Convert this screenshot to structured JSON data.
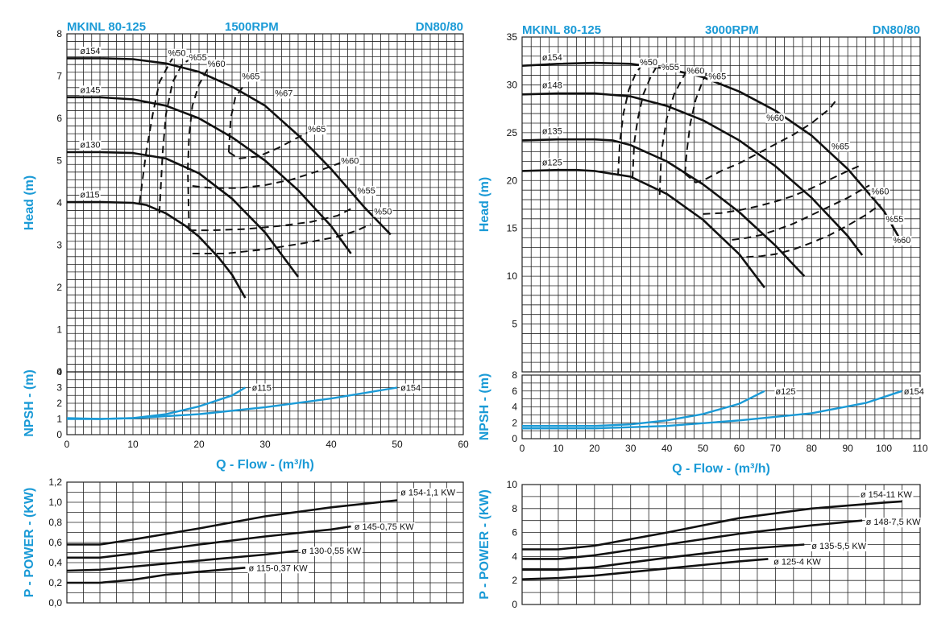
{
  "colors": {
    "accent": "#1a9ad6",
    "grid": "#222222",
    "curve": "#111111"
  },
  "chart_data": [
    {
      "id": "head_1500",
      "type": "line",
      "header": {
        "left": "MKINL 80-125",
        "center": "1500RPM",
        "right": "DN80/80"
      },
      "ylabel": "Head (m)",
      "xlim": [
        0,
        60
      ],
      "ylim": [
        0,
        8
      ],
      "yticks": [
        "0",
        "1",
        "2",
        "3",
        "4",
        "5",
        "6",
        "7",
        "8"
      ],
      "series": [
        {
          "name": "ø154",
          "x": [
            0,
            5,
            10,
            15,
            20,
            25,
            30,
            35,
            40,
            45,
            49
          ],
          "y": [
            7.42,
            7.42,
            7.4,
            7.3,
            7.1,
            6.75,
            6.3,
            5.6,
            4.8,
            3.9,
            3.25
          ]
        },
        {
          "name": "ø145",
          "x": [
            0,
            5,
            10,
            15,
            20,
            25,
            30,
            35,
            40,
            43
          ],
          "y": [
            6.5,
            6.5,
            6.45,
            6.3,
            6.0,
            5.55,
            5.0,
            4.3,
            3.45,
            2.8
          ]
        },
        {
          "name": "ø130",
          "x": [
            0,
            5,
            10,
            15,
            20,
            25,
            30,
            35
          ],
          "y": [
            5.2,
            5.2,
            5.18,
            5.05,
            4.7,
            4.1,
            3.3,
            2.25
          ]
        },
        {
          "name": "ø115",
          "x": [
            0,
            5,
            10,
            12,
            15,
            18,
            20,
            23,
            25,
            27
          ],
          "y": [
            4.02,
            4.02,
            4.0,
            3.95,
            3.75,
            3.45,
            3.2,
            2.7,
            2.3,
            1.75
          ]
        }
      ],
      "efficiency": [
        {
          "name": "%50",
          "label": "%50",
          "x": [
            11,
            12,
            13,
            14,
            15.5,
            16
          ],
          "y": [
            4.0,
            5.2,
            6.1,
            6.85,
            7.3,
            7.42
          ]
        },
        {
          "name": "%55",
          "label": "%55",
          "x": [
            14,
            14.5,
            15,
            16,
            17.5,
            18.5
          ],
          "y": [
            3.75,
            5.2,
            6.1,
            6.85,
            7.3,
            7.38
          ]
        },
        {
          "name": "%60",
          "label": "%60",
          "x": [
            18.5,
            18.3,
            18.5,
            19,
            20,
            21.5
          ],
          "y": [
            3.35,
            4.8,
            5.6,
            6.3,
            6.8,
            7.22
          ]
        },
        {
          "name": "%65",
          "label": "%65",
          "x": [
            24.5,
            24.8,
            25.5,
            27
          ],
          "y": [
            5.2,
            6.0,
            6.5,
            6.82
          ]
        },
        {
          "name": "%67",
          "label": "%67",
          "x": [],
          "y": []
        },
        {
          "name": "%65",
          "label": "%65",
          "x": [
            24.5,
            26,
            29,
            32,
            35,
            37.5
          ],
          "y": [
            5.2,
            5.05,
            5.1,
            5.3,
            5.55,
            5.75
          ]
        },
        {
          "name": "%60",
          "label": "%60",
          "x": [
            19,
            22,
            26,
            30,
            34,
            38,
            41.5
          ],
          "y": [
            4.4,
            4.35,
            4.35,
            4.42,
            4.55,
            4.75,
            4.95
          ]
        },
        {
          "name": "%55",
          "label": "%55",
          "x": [
            18.5,
            22,
            27,
            32,
            37,
            41,
            43.5
          ],
          "y": [
            3.35,
            3.35,
            3.38,
            3.45,
            3.55,
            3.7,
            3.9
          ]
        },
        {
          "name": "%50",
          "label": "%50",
          "x": [
            19,
            24,
            30,
            36,
            41,
            44,
            46
          ],
          "y": [
            2.8,
            2.8,
            2.9,
            3.05,
            3.2,
            3.35,
            3.5
          ]
        }
      ],
      "labels": [
        {
          "text": "ø154",
          "x": 2,
          "y": 7.6
        },
        {
          "text": "ø145",
          "x": 2,
          "y": 6.68
        },
        {
          "text": "ø130",
          "x": 2,
          "y": 5.38
        },
        {
          "text": "ø115",
          "x": 2,
          "y": 4.2
        },
        {
          "text": "%50",
          "x": 15.3,
          "y": 7.55
        },
        {
          "text": "%55",
          "x": 18.5,
          "y": 7.45
        },
        {
          "text": "%60",
          "x": 21.3,
          "y": 7.3
        },
        {
          "text": "%65",
          "x": 26.5,
          "y": 7.0
        },
        {
          "text": "%67",
          "x": 31.5,
          "y": 6.6
        },
        {
          "text": "%65",
          "x": 36.5,
          "y": 5.75
        },
        {
          "text": "%60",
          "x": 41.5,
          "y": 5.0
        },
        {
          "text": "%55",
          "x": 44,
          "y": 4.3
        },
        {
          "text": "%50",
          "x": 46.5,
          "y": 3.8
        }
      ]
    },
    {
      "id": "npsh_1500",
      "type": "line",
      "ylabel": "NPSH - (m)",
      "xlabel": "Q - Flow - (m³/h)",
      "xlim": [
        0,
        60
      ],
      "ylim": [
        0,
        4
      ],
      "xticks": [
        "0",
        "10",
        "20",
        "30",
        "40",
        "50",
        "60"
      ],
      "yticks": [
        "0",
        "1",
        "2",
        "3",
        "4"
      ],
      "series": [
        {
          "name": "ø115",
          "x": [
            0,
            5,
            10,
            15,
            20,
            25,
            27
          ],
          "y": [
            1.05,
            1.0,
            1.05,
            1.3,
            1.8,
            2.5,
            3.0
          ]
        },
        {
          "name": "ø154",
          "x": [
            0,
            5,
            10,
            20,
            30,
            40,
            50
          ],
          "y": [
            1.0,
            1.0,
            1.05,
            1.3,
            1.75,
            2.3,
            3.0
          ]
        }
      ],
      "labels": [
        {
          "text": "ø115",
          "x": 28,
          "y": 3.0
        },
        {
          "text": "ø154",
          "x": 50.5,
          "y": 3.0
        }
      ]
    },
    {
      "id": "power_1500",
      "type": "line",
      "ylabel": "P - POWER - (KW)",
      "xlim": [
        0,
        60
      ],
      "ylim": [
        0,
        1.2
      ],
      "yticks": [
        "0,0",
        "0,2",
        "0,4",
        "0,6",
        "0,8",
        "1,0",
        "1,2"
      ],
      "series": [
        {
          "name": "ø 154-1,1 KW",
          "x": [
            0,
            5,
            10,
            20,
            30,
            40,
            50
          ],
          "y": [
            0.58,
            0.58,
            0.63,
            0.74,
            0.86,
            0.95,
            1.02
          ]
        },
        {
          "name": "ø 145-0,75 KW",
          "x": [
            0,
            5,
            10,
            20,
            30,
            40,
            43
          ],
          "y": [
            0.45,
            0.45,
            0.49,
            0.58,
            0.66,
            0.73,
            0.76
          ]
        },
        {
          "name": "ø 130-0,55 KW",
          "x": [
            0,
            5,
            10,
            20,
            30,
            35
          ],
          "y": [
            0.32,
            0.33,
            0.36,
            0.42,
            0.48,
            0.52
          ]
        },
        {
          "name": "ø 115-0,37 KW",
          "x": [
            0,
            5,
            10,
            15,
            20,
            27
          ],
          "y": [
            0.2,
            0.2,
            0.23,
            0.28,
            0.31,
            0.35
          ]
        }
      ],
      "labels": [
        {
          "text": "ø 154-1,1 KW",
          "x": 50.5,
          "y": 1.1
        },
        {
          "text": "ø 145-0,75 KW",
          "x": 43.5,
          "y": 0.76
        },
        {
          "text": "ø 130-0,55 KW",
          "x": 35.5,
          "y": 0.52
        },
        {
          "text": "ø 115-0,37 KW",
          "x": 27.5,
          "y": 0.35
        }
      ]
    },
    {
      "id": "head_3000",
      "type": "line",
      "header": {
        "left": "MKINL 80-125",
        "center": "3000RPM",
        "right": "DN80/80"
      },
      "ylabel": "Head (m)",
      "xlim": [
        0,
        110
      ],
      "ylim": [
        0,
        35
      ],
      "yticks": [
        "",
        "5",
        "10",
        "15",
        "20",
        "25",
        "30",
        "35"
      ],
      "series": [
        {
          "name": "ø154",
          "x": [
            0,
            10,
            20,
            30,
            40,
            50,
            60,
            70,
            80,
            90,
            100,
            105
          ],
          "y": [
            32.0,
            32.2,
            32.3,
            32.2,
            31.7,
            30.8,
            29.3,
            27.3,
            24.7,
            21.2,
            16.8,
            13.5
          ]
        },
        {
          "name": "ø148",
          "x": [
            0,
            10,
            20,
            30,
            40,
            50,
            60,
            70,
            80,
            90,
            94
          ],
          "y": [
            29.0,
            29.1,
            29.1,
            28.8,
            27.8,
            26.3,
            24.2,
            21.5,
            18.2,
            14.2,
            12.2
          ]
        },
        {
          "name": "ø135",
          "x": [
            0,
            10,
            20,
            25,
            30,
            40,
            50,
            60,
            70,
            78
          ],
          "y": [
            24.2,
            24.3,
            24.3,
            24.2,
            23.7,
            22.0,
            19.6,
            16.7,
            13.2,
            10.0
          ]
        },
        {
          "name": "ø125",
          "x": [
            0,
            10,
            15,
            20,
            30,
            40,
            50,
            60,
            67
          ],
          "y": [
            21.0,
            21.1,
            21.1,
            21.0,
            20.4,
            18.6,
            15.9,
            12.3,
            8.8
          ]
        }
      ],
      "efficiency": [
        {
          "name": "%50",
          "label": "%50",
          "x": [
            26.5,
            27,
            28,
            29.5,
            31.5,
            33
          ],
          "y": [
            20.5,
            24,
            27,
            29.5,
            31.3,
            32
          ]
        },
        {
          "name": "%55",
          "label": "%55",
          "x": [
            30.5,
            31,
            32,
            33.5,
            35.5,
            37
          ],
          "y": [
            20.2,
            24,
            26.5,
            29,
            30.8,
            31.8
          ]
        },
        {
          "name": "%60",
          "label": "%60",
          "x": [
            38,
            38.5,
            40,
            42,
            44.5,
            46
          ],
          "y": [
            18.5,
            23,
            26.5,
            29,
            30.8,
            31.8
          ]
        },
        {
          "name": "%65",
          "label": "%65",
          "x": [
            45,
            45.5,
            46.5,
            48,
            50,
            51
          ],
          "y": [
            20.7,
            23,
            26,
            28.5,
            30.5,
            31.3
          ]
        },
        {
          "name": "%65",
          "label": "%65",
          "x": [
            45,
            48,
            51,
            55,
            60,
            65,
            70,
            75,
            80,
            85,
            87
          ],
          "y": [
            20.7,
            19.8,
            20.2,
            21.0,
            21.8,
            22.8,
            23.8,
            24.8,
            26.0,
            27.5,
            28.5
          ]
        },
        {
          "name": "%60",
          "label": "%60",
          "x": [
            50,
            55,
            60,
            65,
            70,
            75,
            80,
            85,
            90,
            93
          ],
          "y": [
            16.5,
            16.6,
            16.9,
            17.3,
            17.8,
            18.4,
            19.2,
            20.1,
            21.0,
            21.5
          ]
        },
        {
          "name": "%55",
          "label": "%55",
          "x": [
            58,
            62,
            66,
            70,
            75,
            80,
            85,
            90,
            96
          ],
          "y": [
            13.8,
            14.0,
            14.3,
            14.8,
            15.5,
            16.4,
            17.3,
            18.2,
            19.5
          ]
        },
        {
          "name": "%60",
          "label": "%60",
          "x": [
            62,
            66,
            70,
            75,
            80,
            85,
            90,
            95,
            99
          ],
          "y": [
            12.0,
            12.1,
            12.3,
            12.8,
            13.5,
            14.3,
            15.3,
            16.4,
            17.5
          ]
        }
      ],
      "labels": [
        {
          "text": "ø154",
          "x": 5.5,
          "y": 32.9
        },
        {
          "text": "ø148",
          "x": 5.5,
          "y": 30.0
        },
        {
          "text": "ø135",
          "x": 5.5,
          "y": 25.2
        },
        {
          "text": "ø125",
          "x": 5.5,
          "y": 21.9
        },
        {
          "text": "%50",
          "x": 32.5,
          "y": 32.4
        },
        {
          "text": "%55",
          "x": 38.5,
          "y": 31.9
        },
        {
          "text": "%60",
          "x": 45.5,
          "y": 31.5
        },
        {
          "text": "%65",
          "x": 51.5,
          "y": 30.9
        },
        {
          "text": "%60",
          "x": 67.5,
          "y": 26.6
        },
        {
          "text": "%65",
          "x": 85.5,
          "y": 23.6
        },
        {
          "text": "%60",
          "x": 96.5,
          "y": 18.9
        },
        {
          "text": "%55",
          "x": 100.5,
          "y": 16.0
        },
        {
          "text": "%60",
          "x": 102.5,
          "y": 13.8
        }
      ]
    },
    {
      "id": "npsh_3000",
      "type": "line",
      "ylabel": "NPSH - (m)",
      "xlabel": "Q - Flow - (m³/h)",
      "xlim": [
        0,
        110
      ],
      "ylim": [
        0,
        8
      ],
      "xticks": [
        "0",
        "10",
        "20",
        "30",
        "40",
        "50",
        "60",
        "70",
        "80",
        "90",
        "100",
        "110"
      ],
      "yticks": [
        "0",
        "2",
        "4",
        "6",
        "8"
      ],
      "series": [
        {
          "name": "ø125",
          "x": [
            0,
            10,
            20,
            30,
            40,
            50,
            60,
            67
          ],
          "y": [
            1.6,
            1.6,
            1.6,
            1.8,
            2.3,
            3.1,
            4.4,
            6.0
          ]
        },
        {
          "name": "ø154",
          "x": [
            0,
            10,
            20,
            40,
            60,
            80,
            95,
            105
          ],
          "y": [
            1.3,
            1.3,
            1.3,
            1.6,
            2.3,
            3.2,
            4.5,
            6.0
          ]
        }
      ],
      "labels": [
        {
          "text": "ø125",
          "x": 70,
          "y": 6.0
        },
        {
          "text": "ø154",
          "x": 105.5,
          "y": 6.0
        }
      ]
    },
    {
      "id": "power_3000",
      "type": "line",
      "ylabel": "P - POWER - (KW)",
      "xlim": [
        0,
        110
      ],
      "ylim": [
        0,
        10
      ],
      "yticks": [
        "0",
        "2",
        "4",
        "6",
        "8",
        "10"
      ],
      "series": [
        {
          "name": "ø 154-11 KW",
          "x": [
            0,
            10,
            20,
            40,
            60,
            80,
            100,
            105
          ],
          "y": [
            4.6,
            4.6,
            4.9,
            6.0,
            7.2,
            8.0,
            8.5,
            8.6
          ]
        },
        {
          "name": "ø 148-7,5 KW",
          "x": [
            0,
            10,
            20,
            40,
            60,
            80,
            94
          ],
          "y": [
            3.8,
            3.8,
            4.1,
            5.0,
            5.9,
            6.6,
            7.0
          ]
        },
        {
          "name": "ø 135-5,5 KW",
          "x": [
            0,
            10,
            20,
            40,
            60,
            78
          ],
          "y": [
            2.9,
            2.9,
            3.1,
            3.9,
            4.6,
            5.0
          ]
        },
        {
          "name": "ø 125-4 KW",
          "x": [
            0,
            10,
            20,
            40,
            60,
            68
          ],
          "y": [
            2.1,
            2.2,
            2.4,
            3.0,
            3.6,
            3.8
          ]
        }
      ],
      "labels": [
        {
          "text": "ø 154-11 KW",
          "x": 93.5,
          "y": 9.2
        },
        {
          "text": "ø 148-7,5 KW",
          "x": 95,
          "y": 6.9
        },
        {
          "text": "ø 135-5,5 KW",
          "x": 80,
          "y": 4.9
        },
        {
          "text": "ø 125-4 KW",
          "x": 69.5,
          "y": 3.6
        }
      ]
    }
  ]
}
